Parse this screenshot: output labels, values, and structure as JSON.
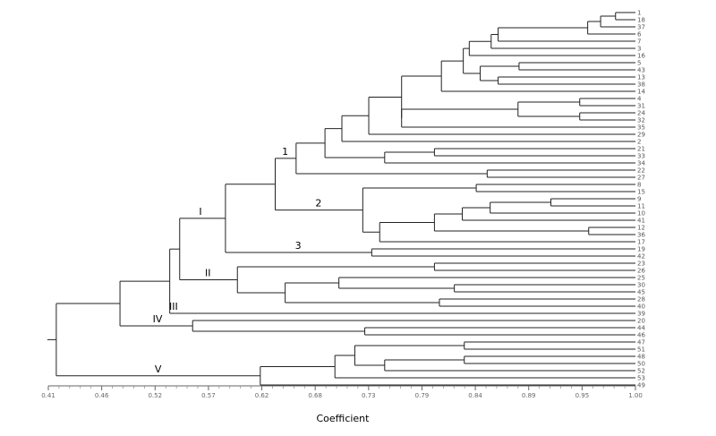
{
  "chart_data": {
    "type": "dendrogram",
    "xlabel": "Coefficient",
    "xlim": [
      0.41,
      1.0
    ],
    "x_ticks": [
      "0.41",
      "0.46",
      "0.52",
      "0.57",
      "0.62",
      "0.68",
      "0.73",
      "0.79",
      "0.84",
      "0.89",
      "0.95",
      "1.00"
    ],
    "leaves": [
      "1",
      "18",
      "37",
      "6",
      "7",
      "3",
      "16",
      "5",
      "43",
      "13",
      "38",
      "14",
      "4",
      "31",
      "24",
      "32",
      "35",
      "29",
      "2",
      "21",
      "33",
      "34",
      "22",
      "27",
      "8",
      "15",
      "9",
      "11",
      "10",
      "41",
      "12",
      "36",
      "17",
      "19",
      "42",
      "23",
      "26",
      "25",
      "30",
      "45",
      "28",
      "40",
      "39",
      "20",
      "44",
      "46",
      "47",
      "51",
      "48",
      "50",
      "52",
      "53",
      "49"
    ],
    "clade_labels": [
      {
        "label": "1",
        "node": "n_1_27",
        "position": "above"
      },
      {
        "label": "2",
        "node": "n_8_17",
        "position": "above"
      },
      {
        "label": "3",
        "node": "n_19_42",
        "position": "above"
      },
      {
        "label": "I",
        "node": "n_1_42",
        "position": "above"
      },
      {
        "label": "II",
        "node": "n_23_40",
        "position": "above"
      },
      {
        "label": "III",
        "node": "l_39",
        "position": "above"
      },
      {
        "label": "IV",
        "node": "n_20_46",
        "position": "above"
      },
      {
        "label": "V",
        "node": "n_47_49",
        "position": "above"
      }
    ],
    "merges": [
      {
        "id": "n_1_18",
        "children": [
          "1",
          "18"
        ],
        "height": 0.98
      },
      {
        "id": "n_1_37",
        "children": [
          "n_1_18",
          "37"
        ],
        "height": 0.965
      },
      {
        "id": "n_1_6",
        "children": [
          "n_1_37",
          "6"
        ],
        "height": 0.952
      },
      {
        "id": "n_1_7",
        "children": [
          "n_1_6",
          "7"
        ],
        "height": 0.862
      },
      {
        "id": "n_1_3",
        "children": [
          "n_1_7",
          "3"
        ],
        "height": 0.855
      },
      {
        "id": "n_1_16",
        "children": [
          "n_1_3",
          "16"
        ],
        "height": 0.833
      },
      {
        "id": "n_5_43",
        "children": [
          "5",
          "43"
        ],
        "height": 0.883
      },
      {
        "id": "n_13_38",
        "children": [
          "13",
          "38"
        ],
        "height": 0.862
      },
      {
        "id": "n_5_38",
        "children": [
          "n_5_43",
          "n_13_38"
        ],
        "height": 0.844
      },
      {
        "id": "n_1_38",
        "children": [
          "n_1_16",
          "n_5_38"
        ],
        "height": 0.827
      },
      {
        "id": "n_1_14",
        "children": [
          "n_1_38",
          "14"
        ],
        "height": 0.805
      },
      {
        "id": "n_4_31",
        "children": [
          "4",
          "31"
        ],
        "height": 0.944
      },
      {
        "id": "n_24_32",
        "children": [
          "24",
          "32"
        ],
        "height": 0.944
      },
      {
        "id": "n_4_32",
        "children": [
          "n_4_31",
          "n_24_32"
        ],
        "height": 0.882
      },
      {
        "id": "n_4_35",
        "children": [
          "n_4_32",
          "35"
        ],
        "height": 0.765
      },
      {
        "id": "n_1_35",
        "children": [
          "n_1_14",
          "n_4_35"
        ],
        "height": 0.765
      },
      {
        "id": "n_1_29",
        "children": [
          "n_1_35",
          "29"
        ],
        "height": 0.732
      },
      {
        "id": "n_1_2",
        "children": [
          "n_1_29",
          "2"
        ],
        "height": 0.705
      },
      {
        "id": "n_21_33",
        "children": [
          "21",
          "33"
        ],
        "height": 0.798
      },
      {
        "id": "n_21_34",
        "children": [
          "n_21_33",
          "34"
        ],
        "height": 0.748
      },
      {
        "id": "n_1_34",
        "children": [
          "n_1_2",
          "n_21_34"
        ],
        "height": 0.688
      },
      {
        "id": "n_22_27",
        "children": [
          "22",
          "27"
        ],
        "height": 0.851
      },
      {
        "id": "n_1_27",
        "children": [
          "n_1_34",
          "n_22_27"
        ],
        "height": 0.659
      },
      {
        "id": "n_8_15",
        "children": [
          "8",
          "15"
        ],
        "height": 0.84
      },
      {
        "id": "n_9_11",
        "children": [
          "9",
          "11"
        ],
        "height": 0.915
      },
      {
        "id": "n_9_10",
        "children": [
          "n_9_11",
          "10"
        ],
        "height": 0.854
      },
      {
        "id": "n_9_41",
        "children": [
          "n_9_10",
          "41"
        ],
        "height": 0.826
      },
      {
        "id": "n_12_36",
        "children": [
          "12",
          "36"
        ],
        "height": 0.953
      },
      {
        "id": "n_9_36",
        "children": [
          "n_9_41",
          "n_12_36"
        ],
        "height": 0.798
      },
      {
        "id": "n_9_17",
        "children": [
          "n_9_36",
          "17"
        ],
        "height": 0.743
      },
      {
        "id": "n_8_17",
        "children": [
          "n_8_15",
          "n_9_17"
        ],
        "height": 0.726
      },
      {
        "id": "n_1_17",
        "children": [
          "n_1_27",
          "n_8_17"
        ],
        "height": 0.638
      },
      {
        "id": "n_19_42",
        "children": [
          "19",
          "42"
        ],
        "height": 0.735
      },
      {
        "id": "n_1_42",
        "children": [
          "n_1_17",
          "n_19_42"
        ],
        "height": 0.588
      },
      {
        "id": "n_23_26",
        "children": [
          "23",
          "26"
        ],
        "height": 0.798
      },
      {
        "id": "n_30_45",
        "children": [
          "30",
          "45"
        ],
        "height": 0.818
      },
      {
        "id": "n_25_45",
        "children": [
          "25",
          "n_30_45"
        ],
        "height": 0.702
      },
      {
        "id": "n_28_40",
        "children": [
          "28",
          "40"
        ],
        "height": 0.803
      },
      {
        "id": "n_25_40",
        "children": [
          "n_25_45",
          "n_28_40"
        ],
        "height": 0.648
      },
      {
        "id": "n_23_40",
        "children": [
          "n_23_26",
          "n_25_40"
        ],
        "height": 0.6
      },
      {
        "id": "n_1_40",
        "children": [
          "n_1_42",
          "n_23_40"
        ],
        "height": 0.542
      },
      {
        "id": "l_39",
        "children": [
          "39"
        ],
        "height": 0.538
      },
      {
        "id": "n_1_39",
        "children": [
          "n_1_40",
          "l_39"
        ],
        "height": 0.532
      },
      {
        "id": "n_44_46",
        "children": [
          "44",
          "46"
        ],
        "height": 0.728
      },
      {
        "id": "n_20_46",
        "children": [
          "20",
          "n_44_46"
        ],
        "height": 0.555
      },
      {
        "id": "n_1_46",
        "children": [
          "n_1_39",
          "n_20_46"
        ],
        "height": 0.482
      },
      {
        "id": "n_47_51",
        "children": [
          "47",
          "51"
        ],
        "height": 0.828
      },
      {
        "id": "n_48_50",
        "children": [
          "48",
          "50"
        ],
        "height": 0.828
      },
      {
        "id": "n_48_52",
        "children": [
          "n_48_50",
          "52"
        ],
        "height": 0.748
      },
      {
        "id": "n_47_52",
        "children": [
          "n_47_51",
          "n_48_52"
        ],
        "height": 0.718
      },
      {
        "id": "n_47_53",
        "children": [
          "n_47_52",
          "53"
        ],
        "height": 0.698
      },
      {
        "id": "n_47_49",
        "children": [
          "n_47_53",
          "49"
        ],
        "height": 0.623
      },
      {
        "id": "root",
        "children": [
          "n_1_46",
          "n_47_49"
        ],
        "height": 0.418
      }
    ]
  }
}
